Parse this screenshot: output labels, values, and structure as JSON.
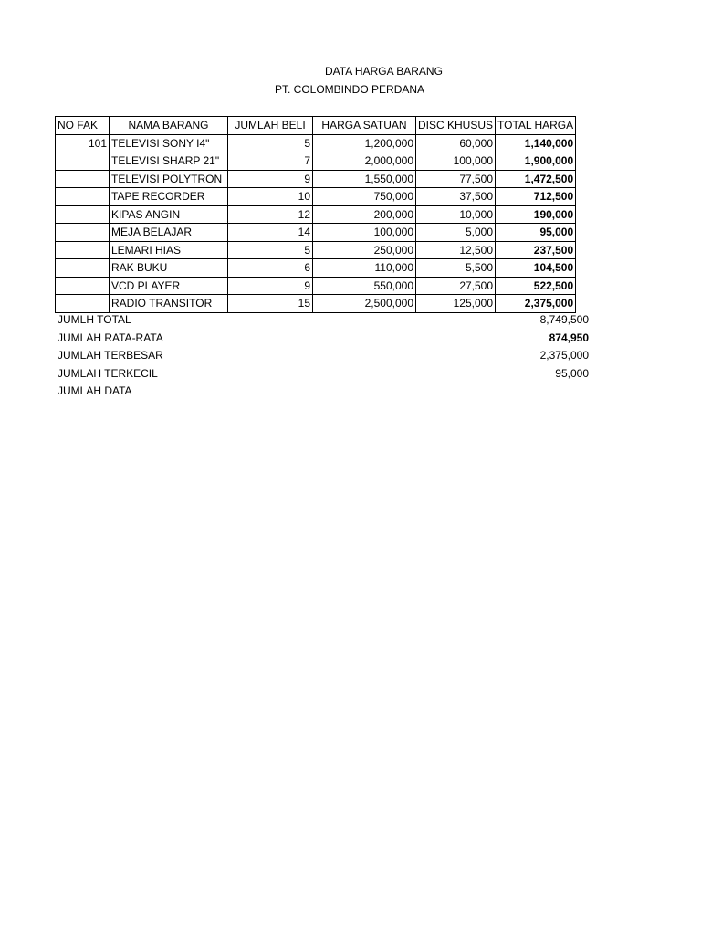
{
  "title": "DATA HARGA BARANG",
  "subtitle": "PT. COLOMBINDO PERDANA",
  "table": {
    "headers": [
      "NO FAK",
      "NAMA BARANG",
      "JUMLAH BELI",
      "HARGA SATUAN",
      "DISC KHUSUS",
      "TOTAL HARGA"
    ],
    "rows": [
      [
        "101",
        "TELEVISI SONY I4\"",
        "5",
        "1,200,000",
        "60,000",
        "1,140,000"
      ],
      [
        "",
        "TELEVISI SHARP 21\"",
        "7",
        "2,000,000",
        "100,000",
        "1,900,000"
      ],
      [
        "",
        "TELEVISI POLYTRON",
        "9",
        "1,550,000",
        "77,500",
        "1,472,500"
      ],
      [
        "",
        "TAPE RECORDER",
        "10",
        "750,000",
        "37,500",
        "712,500"
      ],
      [
        "",
        "KIPAS ANGIN",
        "12",
        "200,000",
        "10,000",
        "190,000"
      ],
      [
        "",
        "MEJA BELAJAR",
        "14",
        "100,000",
        "5,000",
        "95,000"
      ],
      [
        "",
        "LEMARI HIAS",
        "5",
        "250,000",
        "12,500",
        "237,500"
      ],
      [
        "",
        "RAK BUKU",
        "6",
        "110,000",
        "5,500",
        "104,500"
      ],
      [
        "",
        "VCD PLAYER",
        "9",
        "550,000",
        "27,500",
        "522,500"
      ],
      [
        "",
        "RADIO TRANSITOR",
        "15",
        "2,500,000",
        "125,000",
        "2,375,000"
      ]
    ]
  },
  "summary": [
    {
      "label": "JUMLH TOTAL",
      "value": "8,749,500",
      "bold": false
    },
    {
      "label": "JUMLAH RATA-RATA",
      "value": "874,950",
      "bold": true
    },
    {
      "label": "JUMLAH TERBESAR",
      "value": "2,375,000",
      "bold": false
    },
    {
      "label": "JUMLAH TERKECIL",
      "value": "95,000",
      "bold": false
    },
    {
      "label": "JUMLAH DATA",
      "value": "",
      "bold": false
    }
  ]
}
